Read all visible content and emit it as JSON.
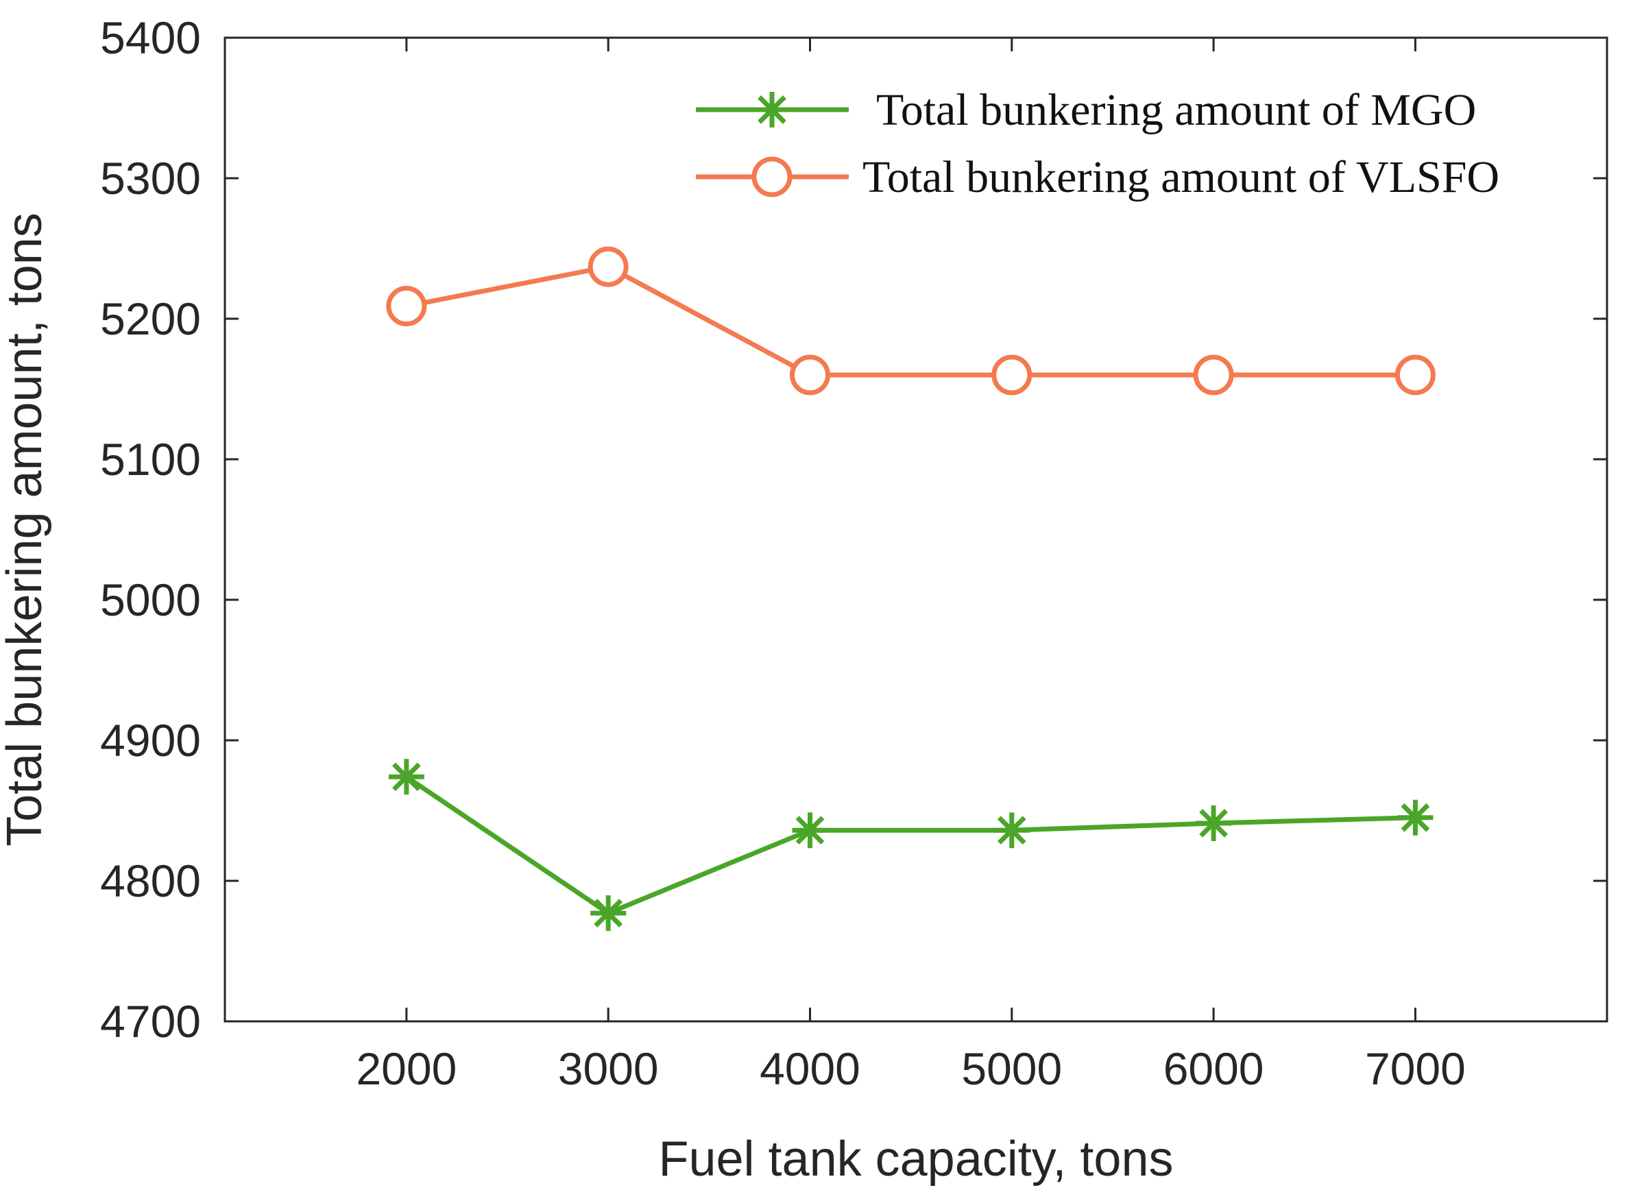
{
  "chart_data": {
    "type": "line",
    "title": "",
    "xlabel": "Fuel tank capacity, tons",
    "ylabel": "Total bunkering amount, tons",
    "x": [
      2000,
      3000,
      4000,
      5000,
      6000,
      7000
    ],
    "xlim": [
      1100,
      7950
    ],
    "ylim": [
      4700,
      5400
    ],
    "x_ticks": [
      2000,
      3000,
      4000,
      5000,
      6000,
      7000
    ],
    "y_ticks": [
      4700,
      4800,
      4900,
      5000,
      5100,
      5200,
      5300,
      5400
    ],
    "grid": false,
    "legend_position": "top-right",
    "series": [
      {
        "name": "Total bunkering amount of MGO",
        "values": [
          4874,
          4777,
          4836,
          4836,
          4841,
          4845
        ],
        "color": "#4aa628",
        "marker": "asterisk"
      },
      {
        "name": "Total bunkering amount of VLSFO",
        "values": [
          5209,
          5237,
          5160,
          5160,
          5160,
          5160
        ],
        "color": "#f47a50",
        "marker": "circle"
      }
    ]
  }
}
